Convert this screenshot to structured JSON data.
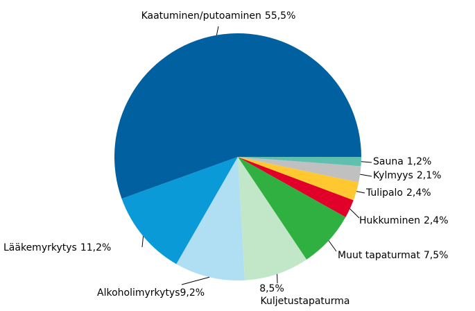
{
  "chart_data": {
    "type": "pie",
    "categories": [
      "Kaatuminen/putoaminen",
      "Lääkemyrkytys",
      "Alkoholimyrkytys",
      "Kuljetustapaturma",
      "Muut tapaturmat",
      "Hukkuminen",
      "Tulipalo",
      "Kylmyys",
      "Sauna"
    ],
    "values": [
      55.5,
      11.2,
      9.2,
      8.5,
      7.5,
      2.4,
      2.4,
      2.1,
      1.2
    ],
    "value_labels": [
      "55,5%",
      "11,2%",
      "9,2%",
      "8,5%",
      "7,5%",
      "2,4%",
      "2,4%",
      "2,1%",
      "1,2%"
    ],
    "colors": [
      "#0060a0",
      "#0a9ad8",
      "#b0def2",
      "#c2e7c8",
      "#30b040",
      "#e0002a",
      "#ffc830",
      "#c0c0c0",
      "#60c0b0"
    ]
  }
}
